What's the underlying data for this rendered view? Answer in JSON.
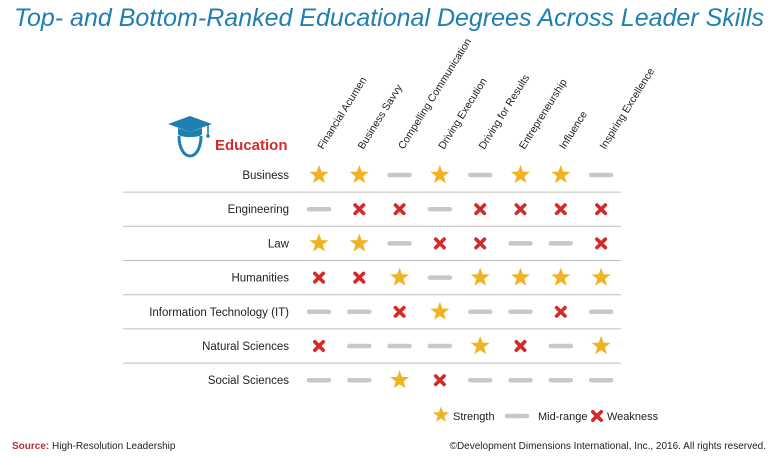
{
  "title": "Top- and Bottom-Ranked Educational Degrees Across Leader Skills",
  "header": {
    "label": "Education",
    "icon": "graduate-cap-icon",
    "color": "#d12b2b",
    "icon_color": "#1f7fb0"
  },
  "chart_data": {
    "type": "table",
    "columns": [
      "Financial Acumen",
      "Business Savvy",
      "Compelling Communication",
      "Driving Execution",
      "Driving for Results",
      "Entrepreneurship",
      "Influence",
      "Inspiring Excellence"
    ],
    "rows": [
      {
        "label": "Business",
        "values": [
          "strength",
          "strength",
          "mid",
          "strength",
          "mid",
          "strength",
          "strength",
          "mid"
        ]
      },
      {
        "label": "Engineering",
        "values": [
          "mid",
          "weakness",
          "weakness",
          "mid",
          "weakness",
          "weakness",
          "weakness",
          "weakness"
        ]
      },
      {
        "label": "Law",
        "values": [
          "strength",
          "strength",
          "mid",
          "weakness",
          "weakness",
          "mid",
          "mid",
          "weakness"
        ]
      },
      {
        "label": "Humanities",
        "values": [
          "weakness",
          "weakness",
          "strength",
          "mid",
          "strength",
          "strength",
          "strength",
          "strength"
        ]
      },
      {
        "label": "Information Technology (IT)",
        "values": [
          "mid",
          "mid",
          "weakness",
          "strength",
          "mid",
          "mid",
          "weakness",
          "mid"
        ]
      },
      {
        "label": "Natural Sciences",
        "values": [
          "weakness",
          "mid",
          "mid",
          "mid",
          "strength",
          "weakness",
          "mid",
          "strength"
        ]
      },
      {
        "label": "Social Sciences",
        "values": [
          "mid",
          "mid",
          "strength",
          "weakness",
          "mid",
          "mid",
          "mid",
          "mid"
        ]
      }
    ],
    "legend": [
      {
        "key": "strength",
        "label": "Strength"
      },
      {
        "key": "mid",
        "label": "Mid-range"
      },
      {
        "key": "weakness",
        "label": "Weakness"
      }
    ],
    "legend_position": "bottom-right",
    "colors": {
      "strength": "#f0b323",
      "mid": "#c8c8c8",
      "weakness": "#d12b2b",
      "row_divider": "#bdbdbd"
    }
  },
  "footer": {
    "source_label": "Source:",
    "source_text": "High-Resolution Leadership",
    "copyright": "©Development Dimensions International, Inc., 2016.  All rights reserved."
  }
}
